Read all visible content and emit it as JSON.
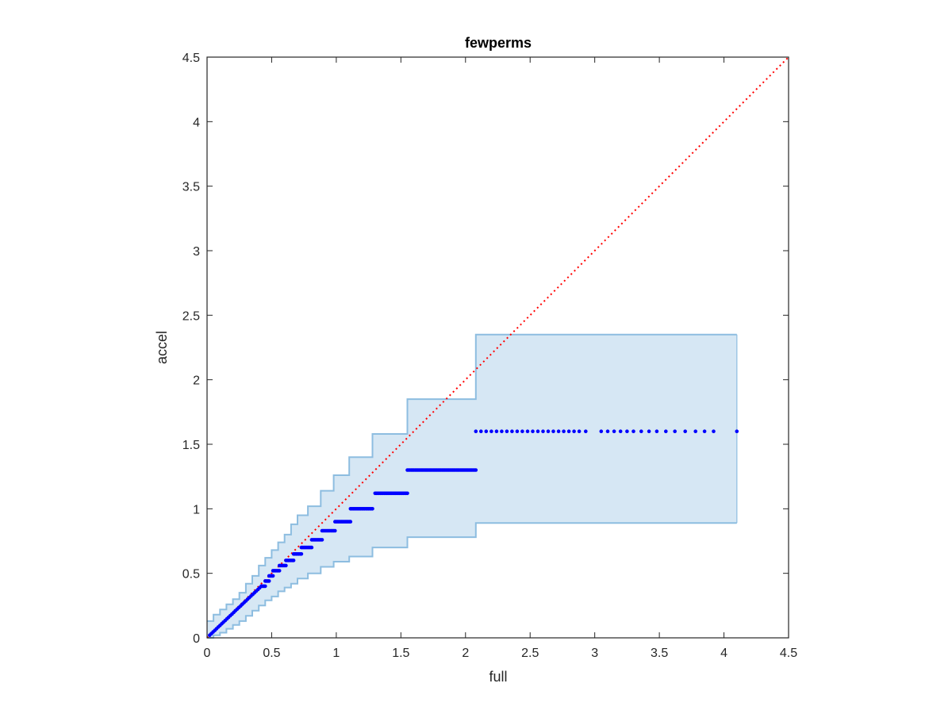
{
  "chart_data": {
    "type": "scatter",
    "title": "fewperms",
    "xlabel": "full",
    "ylabel": "accel",
    "xlim": [
      0,
      4.5
    ],
    "ylim": [
      0,
      4.5
    ],
    "xticks": [
      "0",
      "0.5",
      "1",
      "1.5",
      "2",
      "2.5",
      "3",
      "3.5",
      "4",
      "4.5"
    ],
    "yticks": [
      "0",
      "0.5",
      "1",
      "1.5",
      "2",
      "2.5",
      "3",
      "3.5",
      "4",
      "4.5"
    ],
    "grid": false,
    "colors": {
      "points": "#0000ff",
      "band_fill": "#d6e7f4",
      "band_edge": "#8dbde0",
      "diagonal": "#ff0000",
      "axes": "#262626"
    },
    "reference_line": {
      "style": "dotted",
      "from": [
        0,
        0
      ],
      "to": [
        4.5,
        4.5
      ]
    },
    "band": {
      "x": [
        0,
        0.05,
        0.1,
        0.15,
        0.2,
        0.25,
        0.3,
        0.35,
        0.4,
        0.45,
        0.5,
        0.55,
        0.6,
        0.65,
        0.7,
        0.78,
        0.88,
        0.98,
        1.1,
        1.28,
        1.55,
        2.08,
        4.1
      ],
      "upper": [
        0.13,
        0.18,
        0.22,
        0.26,
        0.3,
        0.35,
        0.42,
        0.48,
        0.56,
        0.62,
        0.68,
        0.74,
        0.8,
        0.88,
        0.95,
        1.02,
        1.14,
        1.26,
        1.4,
        1.58,
        1.85,
        2.35,
        2.35
      ],
      "lower": [
        0.0,
        0.02,
        0.04,
        0.07,
        0.1,
        0.13,
        0.17,
        0.21,
        0.25,
        0.29,
        0.32,
        0.36,
        0.39,
        0.42,
        0.46,
        0.5,
        0.55,
        0.59,
        0.63,
        0.7,
        0.78,
        0.89,
        0.89
      ]
    },
    "series": [
      {
        "segments": [
          {
            "y": 0.4,
            "x_start": 0.42,
            "x_end": 0.45
          },
          {
            "y": 0.44,
            "x_start": 0.45,
            "x_end": 0.48
          },
          {
            "y": 0.48,
            "x_start": 0.48,
            "x_end": 0.51
          },
          {
            "y": 0.52,
            "x_start": 0.51,
            "x_end": 0.56
          },
          {
            "y": 0.56,
            "x_start": 0.56,
            "x_end": 0.61
          },
          {
            "y": 0.6,
            "x_start": 0.61,
            "x_end": 0.67
          },
          {
            "y": 0.65,
            "x_start": 0.67,
            "x_end": 0.73
          },
          {
            "y": 0.7,
            "x_start": 0.73,
            "x_end": 0.81
          },
          {
            "y": 0.76,
            "x_start": 0.81,
            "x_end": 0.89
          },
          {
            "y": 0.83,
            "x_start": 0.89,
            "x_end": 0.99
          },
          {
            "y": 0.9,
            "x_start": 0.99,
            "x_end": 1.11
          },
          {
            "y": 1.0,
            "x_start": 1.11,
            "x_end": 1.28
          },
          {
            "y": 1.12,
            "x_start": 1.3,
            "x_end": 1.55
          },
          {
            "y": 1.3,
            "x_start": 1.55,
            "x_end": 2.08
          }
        ],
        "diagonal_run": {
          "x_start": 0.02,
          "x_end": 0.42,
          "y_start": 0.02,
          "y_end": 0.4
        },
        "sparse_points": {
          "y": 1.6,
          "x": [
            2.08,
            2.12,
            2.16,
            2.2,
            2.24,
            2.28,
            2.32,
            2.36,
            2.4,
            2.44,
            2.48,
            2.52,
            2.56,
            2.6,
            2.64,
            2.68,
            2.72,
            2.76,
            2.8,
            2.84,
            2.88,
            2.93,
            3.05,
            3.1,
            3.15,
            3.2,
            3.25,
            3.3,
            3.36,
            3.42,
            3.48,
            3.55,
            3.62,
            3.7,
            3.78,
            3.85,
            3.92,
            4.1
          ]
        }
      }
    ]
  }
}
